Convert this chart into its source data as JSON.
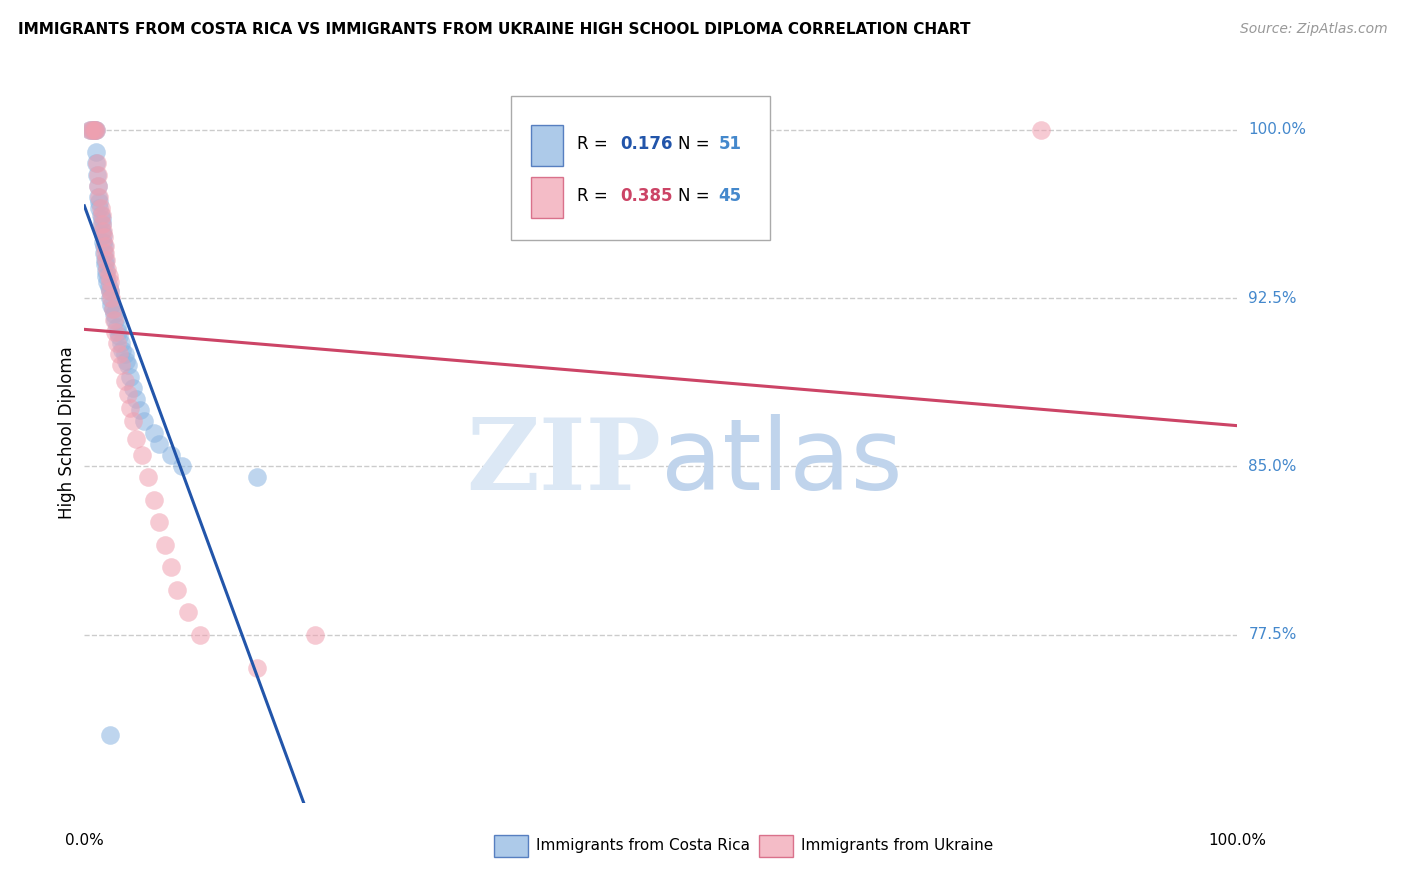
{
  "title": "IMMIGRANTS FROM COSTA RICA VS IMMIGRANTS FROM UKRAINE HIGH SCHOOL DIPLOMA CORRELATION CHART",
  "source": "Source: ZipAtlas.com",
  "ylabel": "High School Diploma",
  "ytick_values": [
    1.0,
    0.925,
    0.85,
    0.775
  ],
  "ytick_labels": [
    "100.0%",
    "92.5%",
    "85.0%",
    "77.5%"
  ],
  "xlim": [
    0.0,
    1.0
  ],
  "ylim": [
    0.7,
    1.03
  ],
  "legend_r_cr": "0.176",
  "legend_n_cr": "51",
  "legend_r_uk": "0.385",
  "legend_n_uk": "45",
  "color_cr": "#8ab4e0",
  "color_uk": "#f0a0b0",
  "color_cr_line": "#2255aa",
  "color_uk_line": "#cc4466",
  "color_right_labels": "#4488cc",
  "color_cr_bold": "#2255aa",
  "color_uk_bold": "#cc4466",
  "watermark_zip_color": "#dce8f5",
  "watermark_atlas_color": "#c0d4ec",
  "cr_x": [
    0.005,
    0.007,
    0.008,
    0.009,
    0.01,
    0.01,
    0.01,
    0.011,
    0.012,
    0.012,
    0.013,
    0.013,
    0.014,
    0.015,
    0.015,
    0.015,
    0.016,
    0.016,
    0.017,
    0.017,
    0.018,
    0.018,
    0.019,
    0.019,
    0.02,
    0.021,
    0.022,
    0.022,
    0.023,
    0.025,
    0.026,
    0.027,
    0.028,
    0.029,
    0.03,
    0.032,
    0.033,
    0.035,
    0.036,
    0.038,
    0.04,
    0.042,
    0.045,
    0.048,
    0.052,
    0.06,
    0.065,
    0.075,
    0.085,
    0.15,
    0.022
  ],
  "cr_y": [
    1.0,
    1.0,
    1.0,
    1.0,
    1.0,
    0.99,
    0.985,
    0.98,
    0.975,
    0.97,
    0.968,
    0.965,
    0.962,
    0.96,
    0.958,
    0.955,
    0.953,
    0.95,
    0.948,
    0.945,
    0.942,
    0.94,
    0.937,
    0.935,
    0.932,
    0.93,
    0.928,
    0.925,
    0.922,
    0.92,
    0.918,
    0.915,
    0.912,
    0.91,
    0.908,
    0.905,
    0.902,
    0.9,
    0.897,
    0.895,
    0.89,
    0.885,
    0.88,
    0.875,
    0.87,
    0.865,
    0.86,
    0.855,
    0.85,
    0.845,
    0.73
  ],
  "uk_x": [
    0.005,
    0.007,
    0.008,
    0.009,
    0.01,
    0.011,
    0.012,
    0.012,
    0.013,
    0.014,
    0.015,
    0.015,
    0.016,
    0.017,
    0.018,
    0.018,
    0.019,
    0.02,
    0.021,
    0.022,
    0.022,
    0.023,
    0.025,
    0.026,
    0.027,
    0.028,
    0.03,
    0.032,
    0.035,
    0.038,
    0.04,
    0.042,
    0.045,
    0.05,
    0.055,
    0.06,
    0.065,
    0.07,
    0.075,
    0.08,
    0.09,
    0.1,
    0.15,
    0.2,
    0.83
  ],
  "uk_y": [
    1.0,
    1.0,
    1.0,
    1.0,
    1.0,
    0.985,
    0.98,
    0.975,
    0.97,
    0.965,
    0.962,
    0.958,
    0.955,
    0.952,
    0.948,
    0.945,
    0.942,
    0.938,
    0.935,
    0.932,
    0.928,
    0.925,
    0.92,
    0.915,
    0.91,
    0.905,
    0.9,
    0.895,
    0.888,
    0.882,
    0.876,
    0.87,
    0.862,
    0.855,
    0.845,
    0.835,
    0.825,
    0.815,
    0.805,
    0.795,
    0.785,
    0.775,
    0.76,
    0.775,
    1.0
  ]
}
